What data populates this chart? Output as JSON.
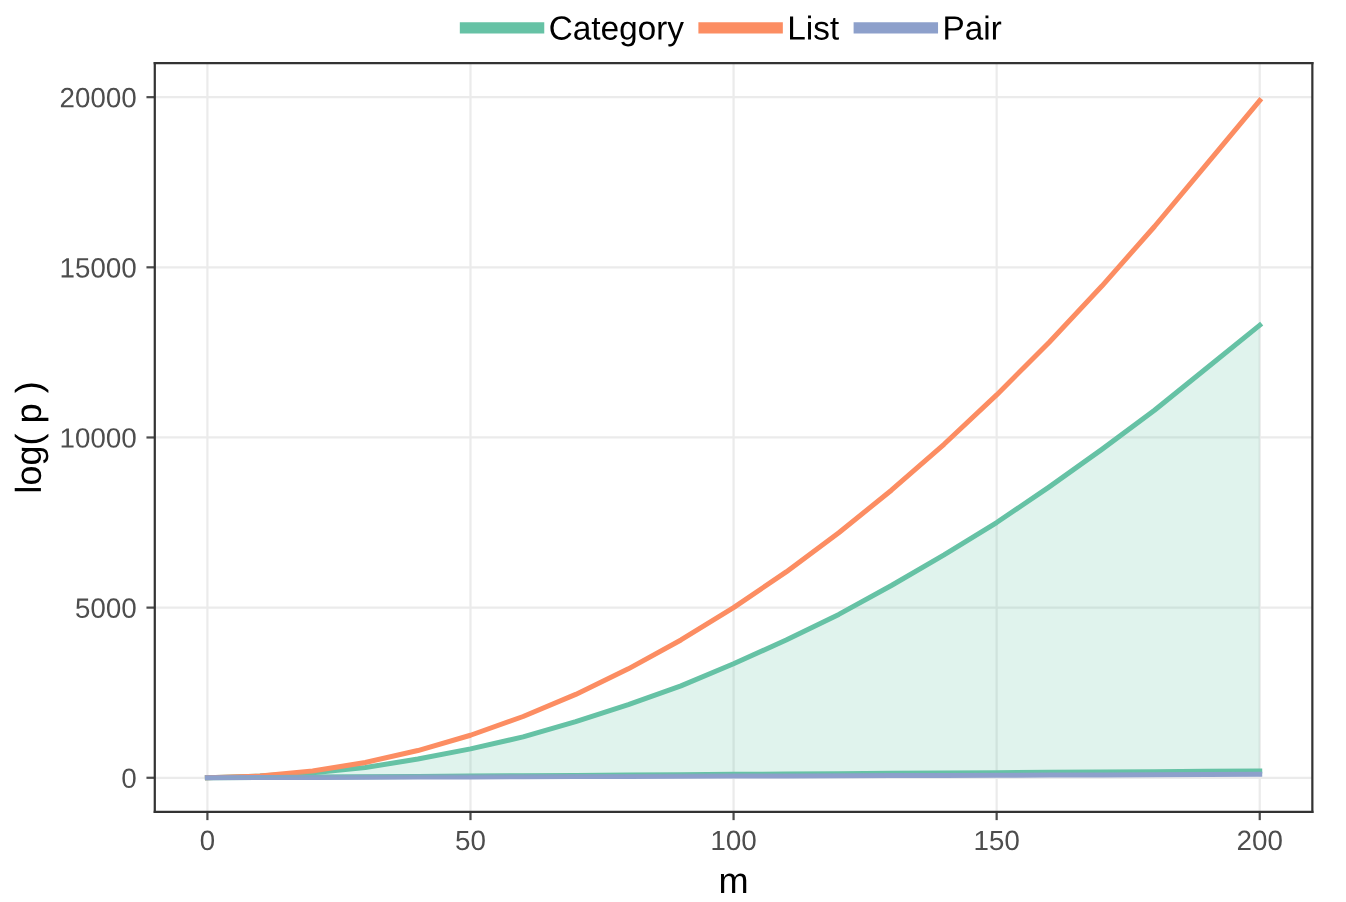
{
  "chart_data": {
    "type": "line",
    "xlabel": "m",
    "ylabel": "log( p )",
    "x": [
      0,
      10,
      20,
      30,
      40,
      50,
      60,
      70,
      80,
      90,
      100,
      110,
      120,
      130,
      140,
      150,
      160,
      170,
      180,
      190,
      200
    ],
    "series": [
      {
        "name": "Category",
        "color": "#66c2a5",
        "values": [
          0,
          50,
          150,
          300,
          550,
          850,
          1200,
          1650,
          2150,
          2700,
          3350,
          4050,
          4800,
          5650,
          6550,
          7500,
          8550,
          9650,
          10800,
          12050,
          13300
        ],
        "lower": [
          0,
          10,
          20,
          30,
          40,
          50,
          60,
          70,
          80,
          90,
          100,
          110,
          120,
          130,
          140,
          150,
          160,
          170,
          180,
          190,
          200
        ],
        "upper": [
          0,
          50,
          150,
          300,
          550,
          850,
          1200,
          1650,
          2150,
          2700,
          3350,
          4050,
          4800,
          5650,
          6550,
          7500,
          8550,
          9650,
          10800,
          12050,
          13300
        ]
      },
      {
        "color": "#66c2a5",
        "values": [
          0,
          10,
          20,
          30,
          40,
          50,
          60,
          70,
          80,
          90,
          100,
          110,
          120,
          130,
          140,
          150,
          160,
          170,
          180,
          190,
          200
        ]
      },
      {
        "name": "List",
        "color": "#fc8d62",
        "values": [
          0,
          50,
          200,
          450,
          800,
          1250,
          1800,
          2450,
          3200,
          4050,
          5000,
          6050,
          7200,
          8450,
          9800,
          11250,
          12800,
          14450,
          16200,
          18050,
          19900
        ]
      },
      {
        "name": "Pair",
        "color": "#8da0cb",
        "values": [
          0,
          5,
          10,
          15,
          20,
          25,
          30,
          35,
          40,
          45,
          50,
          55,
          60,
          65,
          70,
          75,
          80,
          85,
          90,
          95,
          100
        ]
      }
    ],
    "xlim": [
      -10,
      210
    ],
    "ylim": [
      -1000,
      21000
    ],
    "xticks": [
      0,
      50,
      100,
      150,
      200
    ],
    "yticks": [
      0,
      5000,
      10000,
      15000,
      20000
    ],
    "grid": true,
    "legend": "top",
    "line_style": "solid",
    "marker": "none"
  }
}
